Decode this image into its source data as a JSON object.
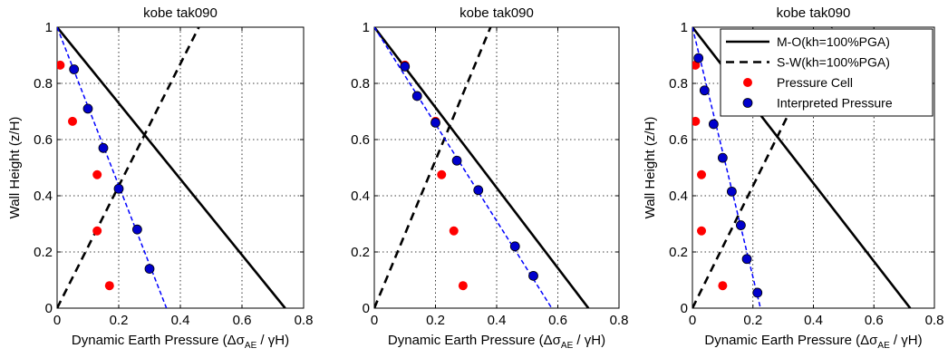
{
  "colors": {
    "mo_line": "#000000",
    "sw_line": "#000000",
    "pressure_cell": "#ff0000",
    "interpreted": "#0000ff",
    "interpreted_fill": "#0000cc",
    "grid": "#000000"
  },
  "legend": {
    "placement": "top-right",
    "entries": [
      "M-O(kh=100%PGA)",
      "S-W(kh=100%PGA)",
      "Pressure Cell",
      "Interpreted Pressure"
    ]
  },
  "chart_data": [
    {
      "type": "line",
      "title": "kobe tak090",
      "xlabel_prefix": "Dynamic Earth Pressure (",
      "xlabel_symbol": "Δσ",
      "xlabel_sub": "AE",
      "xlabel_suffix": " / γH)",
      "ylabel": "Wall Height (z/H)",
      "xlim": [
        0,
        0.8
      ],
      "ylim": [
        0,
        1
      ],
      "xticks": [
        "0",
        "0.2",
        "0.4",
        "0.6",
        "0.8"
      ],
      "yticks": [
        "0",
        "0.2",
        "0.4",
        "0.6",
        "0.8",
        "1"
      ],
      "grid": true,
      "mo_line": [
        [
          0,
          1
        ],
        [
          0.74,
          0
        ]
      ],
      "sw_line": [
        [
          0,
          0
        ],
        [
          0.46,
          1
        ]
      ],
      "interpreted_fit": [
        [
          0,
          1
        ],
        [
          0.355,
          0
        ]
      ],
      "pressure_cell": [
        [
          0.01,
          0.865
        ],
        [
          0.05,
          0.665
        ],
        [
          0.13,
          0.475
        ],
        [
          0.13,
          0.275
        ],
        [
          0.17,
          0.08
        ]
      ],
      "interpreted_pressure": [
        [
          0.055,
          0.85
        ],
        [
          0.1,
          0.71
        ],
        [
          0.15,
          0.57
        ],
        [
          0.2,
          0.425
        ],
        [
          0.26,
          0.28
        ],
        [
          0.3,
          0.14
        ]
      ]
    },
    {
      "type": "line",
      "title": "kobe tak090",
      "xlabel_prefix": "Dynamic Earth Pressure (",
      "xlabel_symbol": "Δσ",
      "xlabel_sub": "AE",
      "xlabel_suffix": " / γH)",
      "ylabel": "",
      "xlim": [
        0,
        0.8
      ],
      "ylim": [
        0,
        1
      ],
      "xticks": [
        "0",
        "0.2",
        "0.4",
        "0.6",
        "0.8"
      ],
      "yticks": [
        "0",
        "0.2",
        "0.4",
        "0.6",
        "0.8",
        "1"
      ],
      "grid": true,
      "mo_line": [
        [
          0,
          1
        ],
        [
          0.7,
          0
        ]
      ],
      "sw_line": [
        [
          0,
          0
        ],
        [
          0.38,
          1
        ]
      ],
      "interpreted_fit": [
        [
          0,
          1
        ],
        [
          0.58,
          0
        ]
      ],
      "pressure_cell": [
        [
          0.1,
          0.865
        ],
        [
          0.2,
          0.665
        ],
        [
          0.22,
          0.475
        ],
        [
          0.26,
          0.275
        ],
        [
          0.29,
          0.08
        ]
      ],
      "interpreted_pressure": [
        [
          0.1,
          0.86
        ],
        [
          0.14,
          0.755
        ],
        [
          0.2,
          0.66
        ],
        [
          0.27,
          0.525
        ],
        [
          0.34,
          0.42
        ],
        [
          0.46,
          0.22
        ],
        [
          0.52,
          0.115
        ]
      ]
    },
    {
      "type": "line",
      "title": "kobe tak090",
      "xlabel_prefix": "Dynamic Earth Pressure (",
      "xlabel_symbol": "Δσ",
      "xlabel_sub": "AE",
      "xlabel_suffix": " / γH)",
      "ylabel": "Wall Height (z/H)",
      "xlim": [
        0,
        0.8
      ],
      "ylim": [
        0,
        1
      ],
      "xticks": [
        "0",
        "0.2",
        "0.4",
        "0.6",
        "0.8"
      ],
      "yticks": [
        "0",
        "0.2",
        "0.4",
        "0.6",
        "0.8",
        "1"
      ],
      "grid": true,
      "legend": true,
      "mo_line": [
        [
          0,
          1
        ],
        [
          0.72,
          0
        ]
      ],
      "sw_line": [
        [
          0,
          0
        ],
        [
          0.46,
          1
        ]
      ],
      "interpreted_fit": [
        [
          0,
          1
        ],
        [
          0.225,
          0
        ]
      ],
      "pressure_cell": [
        [
          0.01,
          0.865
        ],
        [
          0.01,
          0.665
        ],
        [
          0.03,
          0.475
        ],
        [
          0.03,
          0.275
        ],
        [
          0.1,
          0.08
        ]
      ],
      "interpreted_pressure": [
        [
          0.02,
          0.89
        ],
        [
          0.04,
          0.775
        ],
        [
          0.07,
          0.655
        ],
        [
          0.1,
          0.535
        ],
        [
          0.13,
          0.415
        ],
        [
          0.16,
          0.295
        ],
        [
          0.18,
          0.175
        ],
        [
          0.215,
          0.055
        ]
      ]
    }
  ]
}
